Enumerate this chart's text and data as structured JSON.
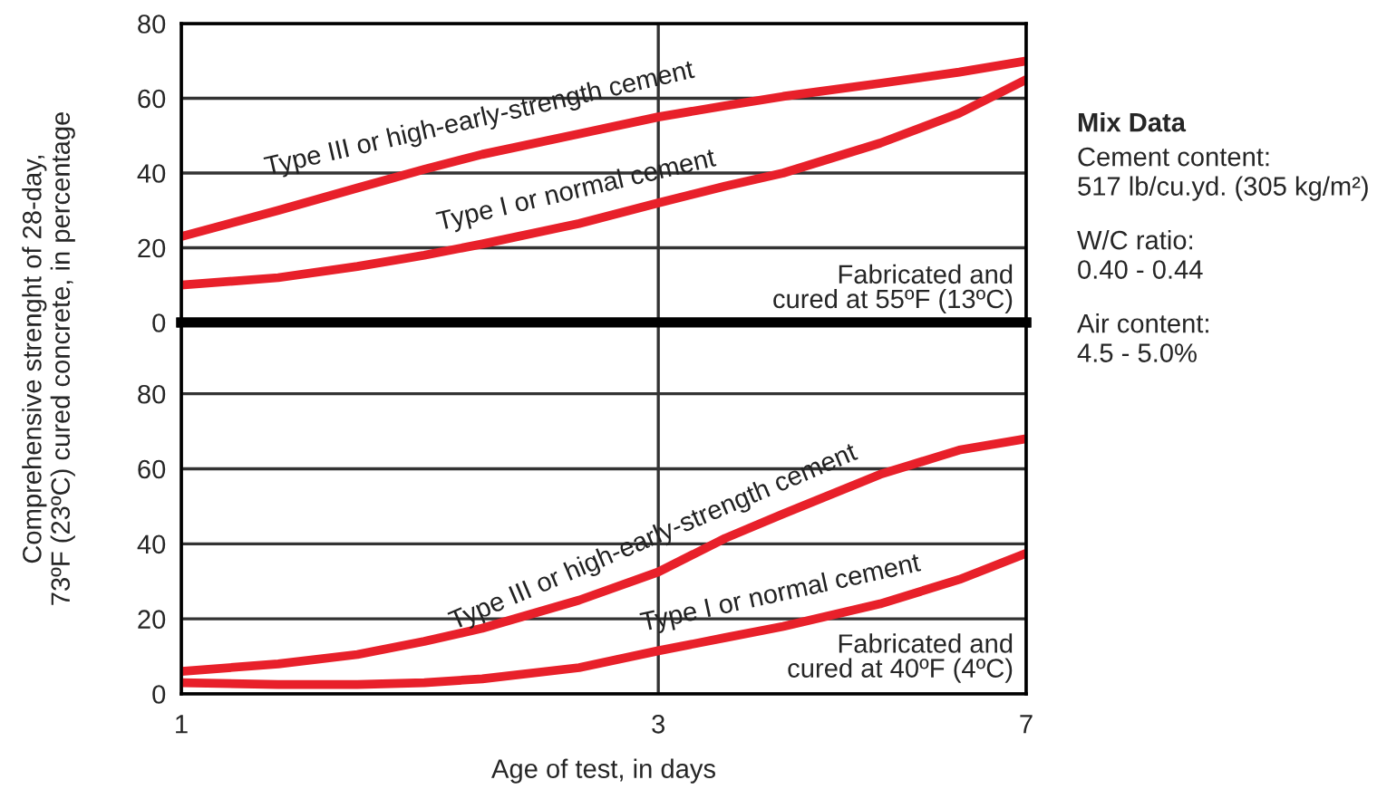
{
  "chart_data": [
    {
      "type": "line",
      "x": [
        1,
        1.25,
        1.5,
        1.75,
        2,
        2.5,
        3,
        3.5,
        4,
        5,
        6,
        7
      ],
      "log": "x",
      "xlim": [
        1,
        7
      ],
      "xticks": [
        1,
        3,
        7
      ],
      "ylim": [
        0,
        80
      ],
      "yticks": [
        0,
        20,
        40,
        60,
        80
      ],
      "grid": true,
      "tick_labels": "y",
      "legend": false,
      "marker": "none",
      "line_style": "solid",
      "ylabel": "Comprehensive strenght of 28-day,\n73ºF (23ºC) cured concrete, in percentage",
      "series": [
        {
          "name": "Type III or high-early-strength cement",
          "color": "#e8202a",
          "values": [
            23,
            30,
            36,
            41,
            45,
            50.5,
            55,
            58,
            60.5,
            64,
            67,
            70
          ]
        },
        {
          "name": "Type I or normal cement",
          "color": "#e8202a",
          "values": [
            10,
            12,
            15,
            18,
            21,
            26.5,
            32,
            36.5,
            40,
            48,
            56,
            65
          ]
        }
      ],
      "annotations": [
        "Fabricated and\ncured at 55ºF (13ºC)",
        "Mix Data",
        "Cement content:\n517 lb/cu.yd. (305 kg/m²)",
        "W/C ratio:\n0.40 - 0.44",
        "Air content:\n4.5 - 5.0%"
      ]
    },
    {
      "type": "line",
      "x": [
        1,
        1.25,
        1.5,
        1.75,
        2,
        2.5,
        3,
        3.5,
        4,
        5,
        6,
        7
      ],
      "log": "x",
      "xlim": [
        1,
        7
      ],
      "xticks": [
        1,
        3,
        7
      ],
      "ylim": [
        0,
        99
      ],
      "yticks": [
        0,
        20,
        40,
        60,
        80
      ],
      "grid": true,
      "legend": false,
      "marker": "none",
      "line_style": "solid",
      "xlabel": "Age of test, in days",
      "series": [
        {
          "name": "Type III or high-early-strength cement",
          "color": "#e8202a",
          "values": [
            6,
            8,
            10.5,
            14,
            17.5,
            25,
            32.5,
            41.5,
            48,
            58.5,
            65,
            68
          ]
        },
        {
          "name": "Type I or normal cement",
          "color": "#e8202a",
          "values": [
            3,
            2.5,
            2.5,
            3,
            4,
            7,
            11.5,
            15,
            18,
            24,
            30.5,
            37.5
          ]
        }
      ],
      "annotations": [
        "Fabricated and\ncured at 40ºF (4ºC)"
      ]
    }
  ]
}
